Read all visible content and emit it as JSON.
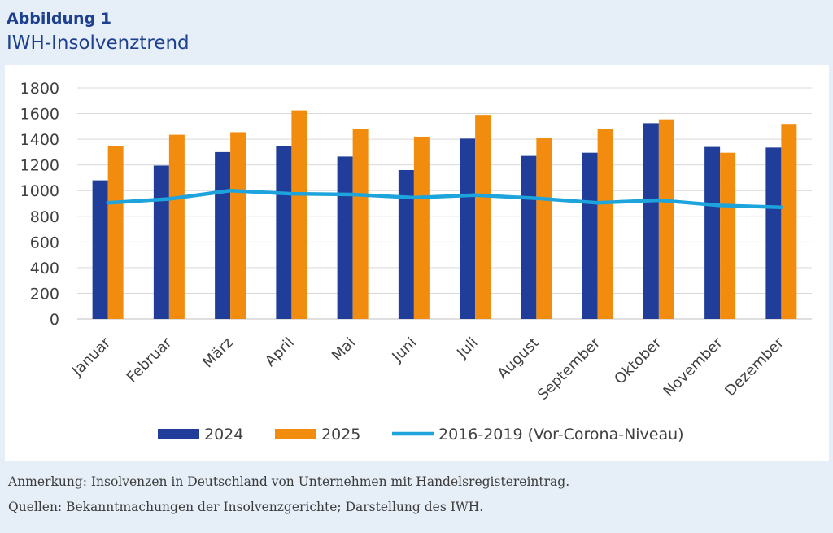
{
  "figure": {
    "label": "Abbildung 1",
    "title": "IWH-Insolvenztrend"
  },
  "notes": {
    "remark": "Anmerkung: Insolvenzen in Deutschland von Unternehmen mit Handelsregistereintrag.",
    "sources": "Quellen: Bekanntmachungen der Insolvenzgerichte; Darstellung des IWH."
  },
  "colors": {
    "series_2024": "#1f3d99",
    "series_2025": "#f28c0f",
    "series_baseline": "#1ea4dc",
    "grid": "#d9d9d9",
    "title": "#1c3f8f"
  },
  "chart_data": {
    "type": "bar",
    "categories": [
      "Januar",
      "Februar",
      "März",
      "April",
      "Mai",
      "Juni",
      "Juli",
      "August",
      "September",
      "Oktober",
      "November",
      "Dezember"
    ],
    "series": [
      {
        "name": "2024",
        "type": "bar",
        "values": [
          1080,
          1195,
          1300,
          1345,
          1265,
          1160,
          1405,
          1270,
          1295,
          1525,
          1340,
          1335
        ]
      },
      {
        "name": "2025",
        "type": "bar",
        "values": [
          1345,
          1435,
          1455,
          1625,
          1480,
          1420,
          1590,
          1410,
          1480,
          1555,
          1295,
          1520
        ]
      },
      {
        "name": "2016-2019 (Vor-Corona-Niveau)",
        "type": "line",
        "values": [
          905,
          935,
          1000,
          975,
          970,
          945,
          965,
          940,
          905,
          925,
          885,
          870
        ]
      }
    ],
    "ylim": [
      0,
      1800
    ],
    "yticks": [
      0,
      200,
      400,
      600,
      800,
      1000,
      1200,
      1400,
      1600,
      1800
    ],
    "grid": true,
    "legend": "bottom"
  }
}
